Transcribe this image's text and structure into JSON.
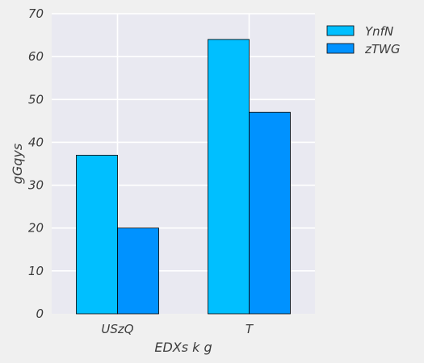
{
  "chart_data": {
    "type": "bar",
    "title": "",
    "xlabel": "EDXs  k   g",
    "ylabel": "gGqys",
    "categories": [
      "USzQ",
      "T"
    ],
    "series": [
      {
        "name": "YnfN",
        "values": [
          37,
          64
        ],
        "color": "#00bfff"
      },
      {
        "name": "zTWG",
        "values": [
          20,
          47
        ],
        "color": "#0092ff"
      }
    ],
    "ylim": [
      0,
      70
    ],
    "yticks": [
      0,
      10,
      20,
      30,
      40,
      50,
      60,
      70
    ],
    "grid": true,
    "legend": "top-right, outside plot",
    "colors": {
      "plot_background": "#e9e9f1",
      "figure_background": "#f0f0f0",
      "grid": "#ffffff",
      "bar_edge": "#000000"
    }
  }
}
